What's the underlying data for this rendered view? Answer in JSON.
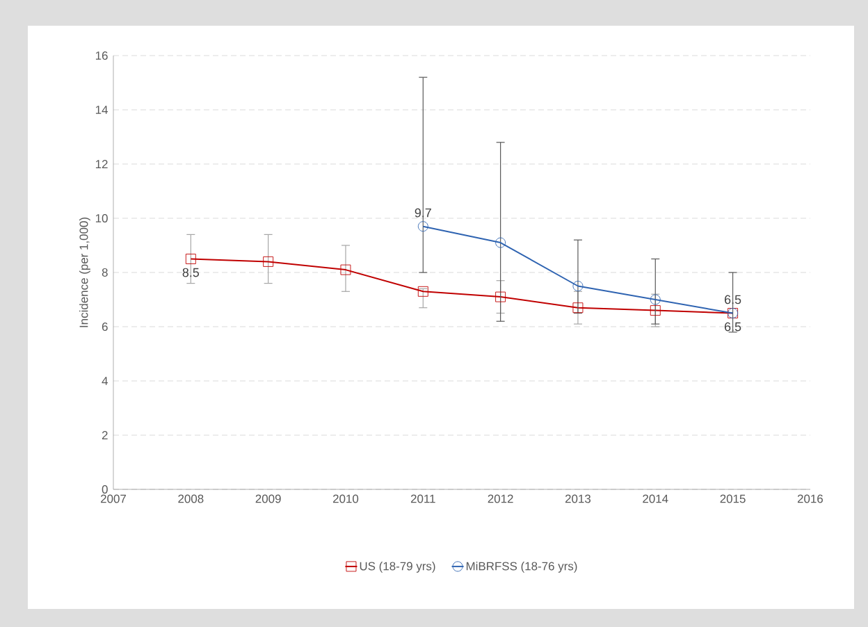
{
  "chart_data": {
    "type": "line",
    "ylabel": "Incidence (per 1,000)",
    "xlim": [
      2007,
      2016
    ],
    "xticks": [
      2007,
      2008,
      2009,
      2010,
      2011,
      2012,
      2013,
      2014,
      2015,
      2016
    ],
    "ylim": [
      0,
      16
    ],
    "yticks": [
      0,
      2,
      4,
      6,
      8,
      10,
      12,
      14,
      16
    ],
    "grid": "y",
    "legend": "bottom",
    "series": [
      {
        "name": "US (18-79 yrs)",
        "color": "#c00000",
        "marker": "square",
        "x": [
          2008,
          2009,
          2010,
          2011,
          2012,
          2013,
          2014,
          2015
        ],
        "values": [
          8.5,
          8.4,
          8.1,
          7.3,
          7.1,
          6.7,
          6.6,
          6.5
        ],
        "errors": [
          [
            7.6,
            9.4
          ],
          [
            7.6,
            9.4
          ],
          [
            7.3,
            9.0
          ],
          [
            6.7,
            7.4
          ],
          [
            6.5,
            7.7
          ],
          [
            6.1,
            7.3
          ],
          [
            6.0,
            7.2
          ],
          null
        ],
        "value_labels": [
          "8.5",
          null,
          null,
          null,
          null,
          null,
          null,
          "6.5"
        ]
      },
      {
        "name": "MiBRFSS (18-76 yrs)",
        "color": "#2e63b1",
        "marker": "circle",
        "x": [
          2011,
          2012,
          2013,
          2014,
          2015
        ],
        "values": [
          9.7,
          9.1,
          7.5,
          7.0,
          6.5
        ],
        "errors": [
          [
            8.0,
            15.2
          ],
          [
            6.2,
            12.8
          ],
          [
            6.5,
            9.2
          ],
          [
            6.1,
            8.5
          ],
          [
            5.8,
            8.0
          ]
        ],
        "value_labels": [
          "9.7",
          null,
          null,
          null,
          "6.5"
        ]
      }
    ]
  }
}
